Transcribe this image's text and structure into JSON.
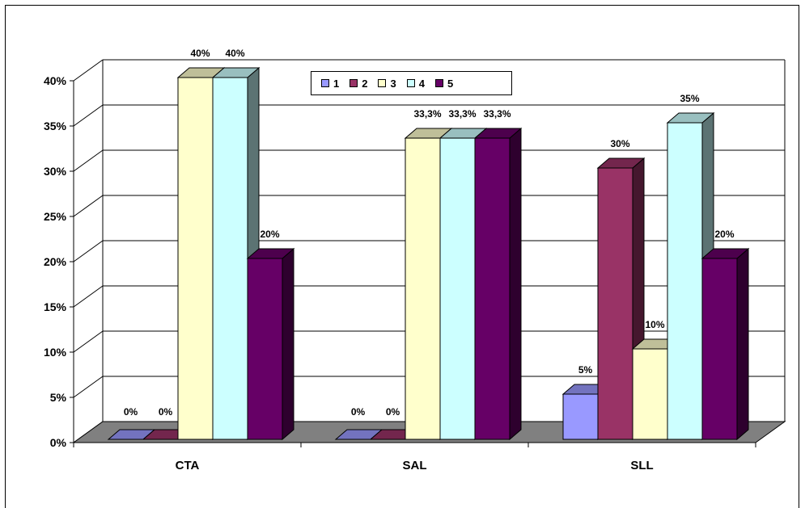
{
  "chart_data": {
    "type": "bar",
    "categories": [
      "CTA",
      "SAL",
      "SLL"
    ],
    "series": [
      {
        "name": "1",
        "values": [
          0,
          0,
          5
        ],
        "labels": [
          "0%",
          "0%",
          "5%"
        ]
      },
      {
        "name": "2",
        "values": [
          0,
          0,
          30
        ],
        "labels": [
          "0%",
          "0%",
          "30%"
        ]
      },
      {
        "name": "3",
        "values": [
          40,
          33.3,
          10
        ],
        "labels": [
          "40%",
          "33,3%",
          "10%"
        ]
      },
      {
        "name": "4",
        "values": [
          40,
          33.3,
          35
        ],
        "labels": [
          "40%",
          "33,3%",
          "35%"
        ]
      },
      {
        "name": "5",
        "values": [
          20,
          33.3,
          20
        ],
        "labels": [
          "20%",
          "33,3%",
          "20%"
        ]
      }
    ],
    "y_ticks": [
      "0%",
      "5%",
      "10%",
      "15%",
      "20%",
      "25%",
      "30%",
      "35%",
      "40%"
    ],
    "ylim": [
      0,
      40
    ],
    "grid": true,
    "legend_position": "top-center",
    "colors": {
      "1": "#9999FF",
      "2": "#993366",
      "3": "#FFFFCC",
      "4": "#CCFFFF",
      "5": "#660066",
      "floor": "#808080"
    }
  }
}
